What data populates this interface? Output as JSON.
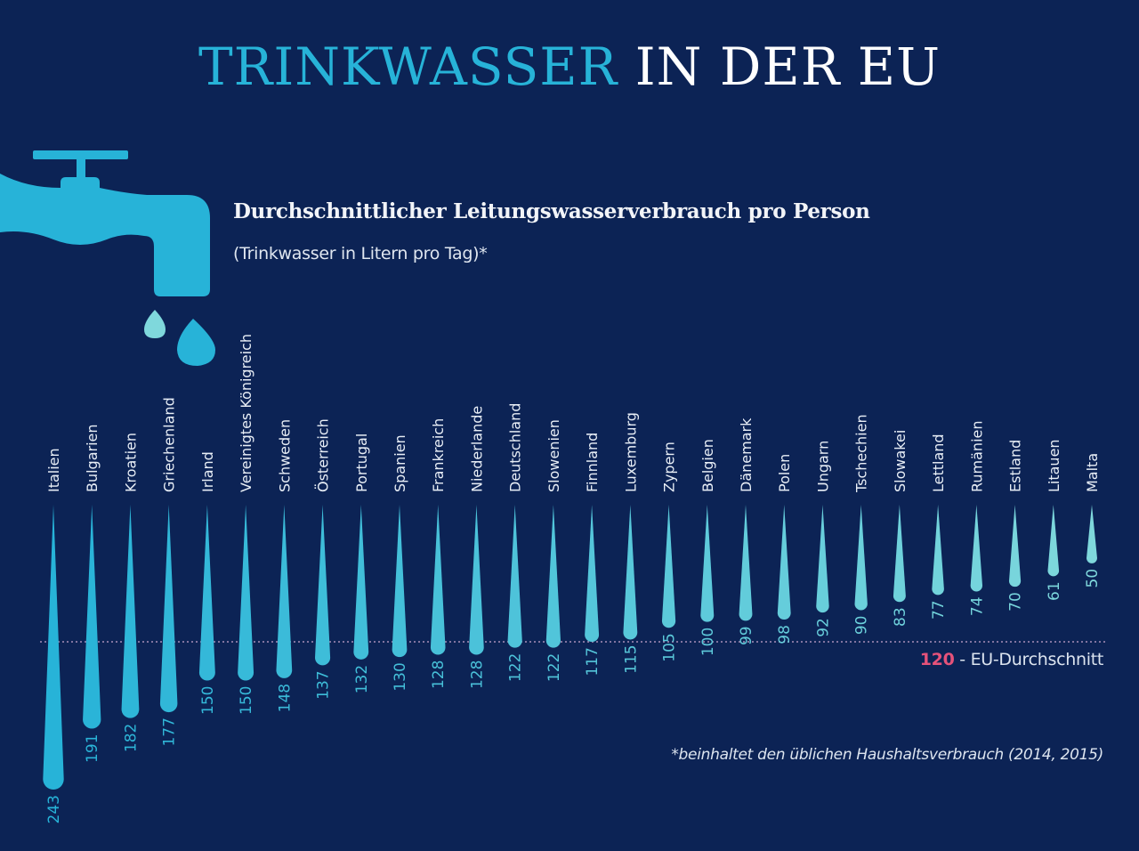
{
  "header": {
    "title_part1": "TRINKWASSER",
    "title_part2": "IN DER EU",
    "subtitle": "Durchschnittlicher Leitungswasserverbrauch pro Person",
    "unit_note": "(Trinkwasser in Litern pro Tag)*"
  },
  "icons": {
    "tap": "water-tap-icon",
    "drops": "water-drop-icon"
  },
  "colors": {
    "background": "#0c2355",
    "accent": "#27b3d8",
    "drop_start": "#27b3d8",
    "drop_end": "#7fd8dc",
    "eu_average": "#e5527a"
  },
  "reference": {
    "value": "120",
    "label": " - EU-Durchschnitt"
  },
  "footnote": "*beinhaltet den üblichen Haushaltsverbrauch (2014, 2015)",
  "chart_data": {
    "type": "bar",
    "orientation": "vertical-down",
    "title": "Durchschnittlicher Leitungswasserverbrauch pro Person",
    "subtitle": "(Trinkwasser in Litern pro Tag)*",
    "xlabel": "",
    "ylabel": "Liter pro Tag",
    "ylim": [
      0,
      243
    ],
    "grid": false,
    "categories": [
      "Italien",
      "Bulgarien",
      "Kroatien",
      "Griechenland",
      "Irland",
      "Vereinigtes Königreich",
      "Schweden",
      "Österreich",
      "Portugal",
      "Spanien",
      "Frankreich",
      "Niederlande",
      "Deutschland",
      "Slowenien",
      "Finnland",
      "Luxemburg",
      "Zypern",
      "Belgien",
      "Dänemark",
      "Polen",
      "Ungarn",
      "Tschechien",
      "Slowakei",
      "Lettland",
      "Rumänien",
      "Estland",
      "Litauen",
      "Malta"
    ],
    "values": [
      243,
      191,
      182,
      177,
      150,
      150,
      148,
      137,
      132,
      130,
      128,
      128,
      122,
      122,
      117,
      115,
      105,
      100,
      99,
      98,
      92,
      90,
      83,
      77,
      74,
      70,
      61,
      50
    ],
    "reference_line": {
      "value": 120,
      "label": "EU-Durchschnitt"
    },
    "annotations": [
      "*beinhaltet den üblichen Haushaltsverbrauch (2014, 2015)"
    ]
  }
}
